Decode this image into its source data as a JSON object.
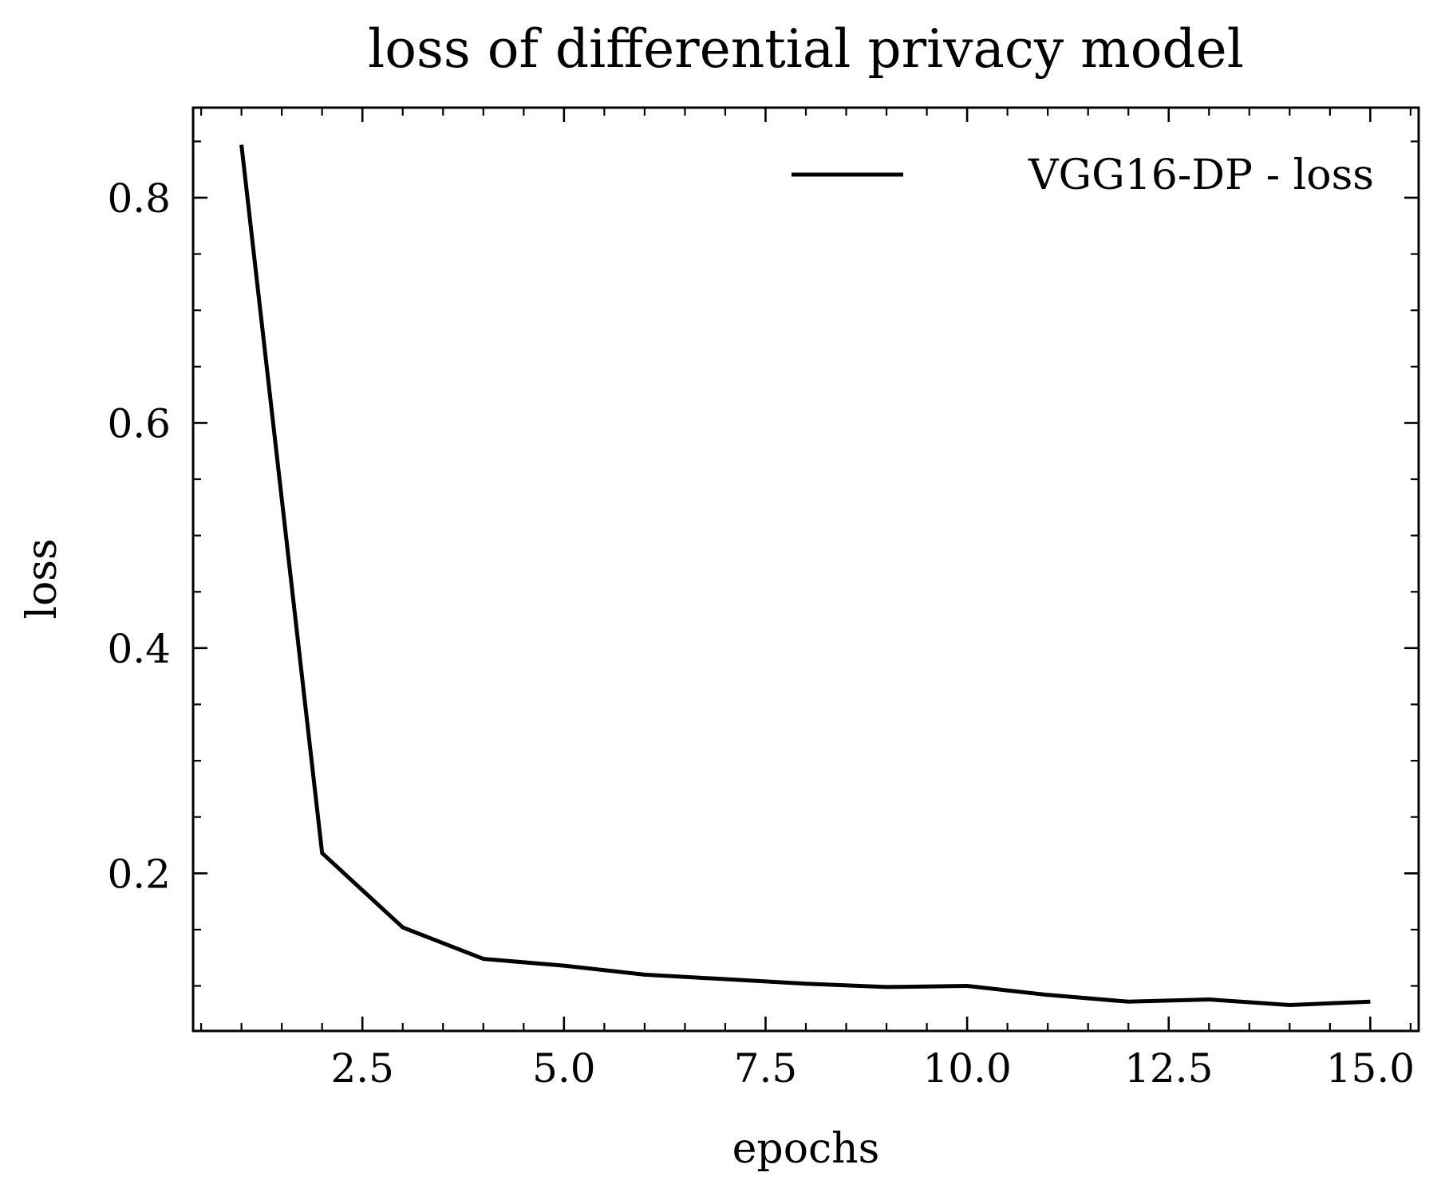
{
  "chart_data": {
    "type": "line",
    "title": "loss of differential privacy model",
    "xlabel": "epochs",
    "ylabel": "loss",
    "xlim": [
      0.4,
      15.6
    ],
    "ylim": [
      0.06,
      0.88
    ],
    "xticks": [
      2.5,
      5.0,
      7.5,
      10.0,
      12.5,
      15.0
    ],
    "xtick_labels": [
      "2.5",
      "5.0",
      "7.5",
      "10.0",
      "12.5",
      "15.0"
    ],
    "yticks": [
      0.2,
      0.4,
      0.6,
      0.8
    ],
    "ytick_labels": [
      "0.2",
      "0.4",
      "0.6",
      "0.8"
    ],
    "x_minor_step": 0.5,
    "y_minor_step": 0.05,
    "grid": false,
    "legend_position": "top-right",
    "series": [
      {
        "name": "VGG16-DP - loss",
        "color": "#000000",
        "x": [
          1,
          2,
          3,
          4,
          5,
          6,
          7,
          8,
          9,
          10,
          11,
          12,
          13,
          14,
          15
        ],
        "y": [
          0.847,
          0.218,
          0.152,
          0.124,
          0.118,
          0.11,
          0.106,
          0.102,
          0.099,
          0.1,
          0.092,
          0.086,
          0.088,
          0.083,
          0.086
        ]
      }
    ]
  }
}
